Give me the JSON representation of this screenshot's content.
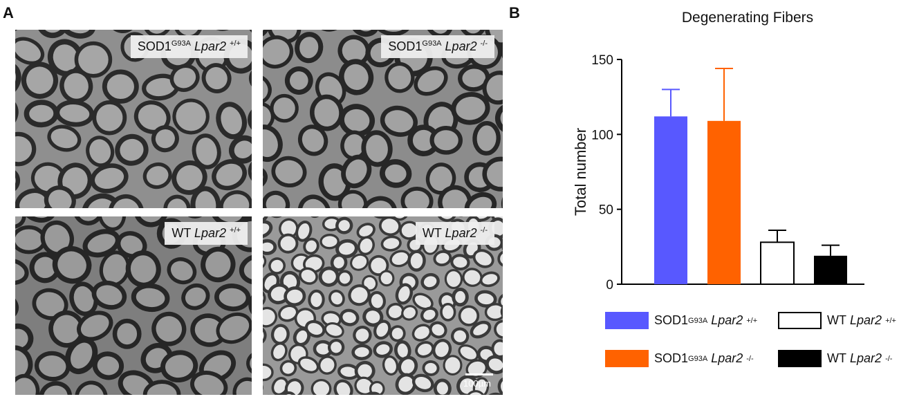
{
  "panels": {
    "a_letter": "A",
    "b_letter": "B"
  },
  "micrographs": [
    {
      "gene": "SOD1",
      "mutation": "G93A",
      "lpar": "Lpar2",
      "genotype": "+/+",
      "bg": "#8f8f8f",
      "ring": "#2b2b2b",
      "fill": "#a6a6a6",
      "seed": 3
    },
    {
      "gene": "SOD1",
      "mutation": "G93A",
      "lpar": "Lpar2",
      "genotype": "-/-",
      "bg": "#8c8c8c",
      "ring": "#272727",
      "fill": "#a2a2a2",
      "seed": 7
    },
    {
      "gene": "WT",
      "mutation": "",
      "lpar": "Lpar2",
      "genotype": "+/+",
      "bg": "#7e7e7e",
      "ring": "#262626",
      "fill": "#9a9a9a",
      "seed": 11
    },
    {
      "gene": "WT",
      "mutation": "",
      "lpar": "Lpar2",
      "genotype": "-/-",
      "bg": "#9a9a9a",
      "ring": "#3a3a3a",
      "fill": "#e4e4e4",
      "seed": 17
    }
  ],
  "scale_bar_label": "100µm",
  "chart_data": {
    "type": "bar",
    "title": "Degenerating Fibers",
    "ylabel": "Total number",
    "xlabel": "",
    "ylim": [
      0,
      150
    ],
    "yticks": [
      "0",
      "50",
      "100",
      "150"
    ],
    "series": [
      {
        "gene": "SOD1",
        "mutation": "G93A",
        "lpar": "Lpar2",
        "genotype": "+/+",
        "value": 112,
        "error": 18,
        "color": "#5858ff",
        "outline": "#5858ff"
      },
      {
        "gene": "SOD1",
        "mutation": "G93A",
        "lpar": "Lpar2",
        "genotype": "-/-",
        "value": 109,
        "error": 35,
        "color": "#ff6200",
        "outline": "#ff6200"
      },
      {
        "gene": "WT",
        "mutation": "",
        "lpar": "Lpar2",
        "genotype": "+/+",
        "value": 28,
        "error": 8,
        "color": "#ffffff",
        "outline": "#000000"
      },
      {
        "gene": "WT",
        "mutation": "",
        "lpar": "Lpar2",
        "genotype": "-/-",
        "value": 19,
        "error": 7,
        "color": "#000000",
        "outline": "#000000"
      }
    ],
    "legend_position": "bottom"
  }
}
